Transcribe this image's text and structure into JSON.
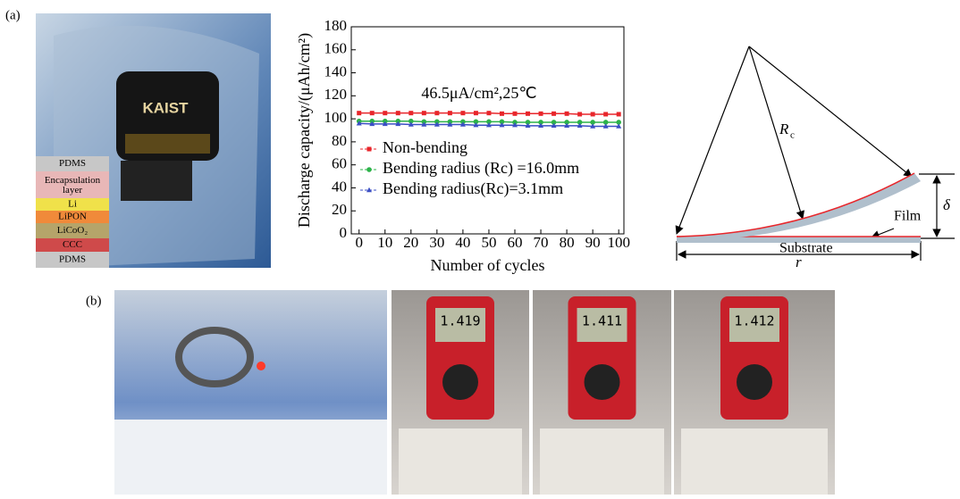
{
  "panel_labels": [
    "(a)",
    "(b)"
  ],
  "layers": [
    "PDMS",
    "Encapsulation layer",
    "Li",
    "LiPON",
    "LiCoO₂",
    "CCC",
    "PDMS"
  ],
  "photo_texts": {
    "logo": "KAIST",
    "meters": [
      "1.419",
      "1.411",
      "1.412"
    ]
  },
  "chart_data": {
    "type": "line",
    "annotation": "46.5μA/cm²,25℃",
    "x_label": "Number of cycles",
    "y_label": "Discharge capacity/(μAh/cm²)",
    "x": [
      0,
      5,
      10,
      15,
      20,
      25,
      30,
      35,
      40,
      45,
      50,
      55,
      60,
      65,
      70,
      75,
      80,
      85,
      90,
      95,
      100
    ],
    "series": [
      {
        "name": "Non-bending",
        "color": "#e8262b",
        "marker": "square",
        "values": [
          105,
          105,
          105,
          105,
          105,
          105,
          105,
          105,
          105,
          105,
          105,
          104.5,
          104.5,
          104.5,
          104.5,
          104.5,
          104.5,
          104,
          104,
          104,
          104
        ]
      },
      {
        "name": "Bending radius (Rc) =16.0mm",
        "color": "#2db34a",
        "marker": "circle",
        "values": [
          98,
          98,
          98,
          98,
          98,
          97.5,
          97.5,
          97.5,
          97.5,
          97.5,
          97.5,
          97.5,
          97,
          97,
          97,
          97,
          97,
          97,
          97,
          97,
          97
        ]
      },
      {
        "name": "Bending radius(Rc)=3.1mm",
        "color": "#3b4fc4",
        "marker": "triangle",
        "values": [
          96,
          95.5,
          95.5,
          95.5,
          95,
          95,
          95,
          95,
          95,
          94.5,
          94.5,
          94.5,
          94.5,
          94,
          94,
          94,
          94,
          94,
          93.5,
          93.5,
          93.5
        ]
      }
    ],
    "xlim": [
      -3,
      102
    ],
    "xticks": [
      0,
      10,
      20,
      30,
      40,
      50,
      60,
      70,
      80,
      90,
      100
    ],
    "ylim": [
      0,
      180
    ],
    "yticks": [
      0,
      20,
      40,
      60,
      80,
      100,
      120,
      140,
      160,
      180
    ]
  },
  "diagram": {
    "radius": "R",
    "radius_subscript": "c",
    "film": "Film",
    "substrate": "Substrate",
    "length": "r",
    "deflection": "δ"
  }
}
